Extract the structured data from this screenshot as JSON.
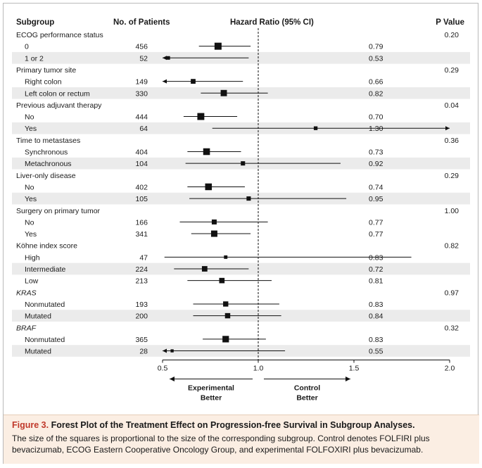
{
  "headers": {
    "subgroup": "Subgroup",
    "patients": "No. of Patients",
    "hr": "Hazard Ratio (95% CI)",
    "pvalue": "P Value"
  },
  "chart_data": {
    "type": "forest",
    "reference_line": 1.0,
    "xlim": [
      0.5,
      2.0
    ],
    "ticks": [
      {
        "value": 0.5,
        "label": "0.5"
      },
      {
        "value": 1.0,
        "label": "1.0"
      },
      {
        "value": 1.5,
        "label": "1.5"
      },
      {
        "value": 2.0,
        "label": "2.0"
      }
    ],
    "left_label": [
      "Experimental",
      "Better"
    ],
    "right_label": [
      "Control",
      "Better"
    ],
    "groups": [
      {
        "name": "ECOG performance status",
        "italic": false,
        "pvalue": "0.20",
        "rows": [
          {
            "label": "0",
            "n": "456",
            "hr_text": "0.79",
            "hr": 0.79,
            "lo": 0.69,
            "hi": 0.96
          },
          {
            "label": "1 or 2",
            "n": "52",
            "hr_text": "0.53",
            "hr": 0.53,
            "lo": 0.45,
            "hi": 0.95
          }
        ]
      },
      {
        "name": "Primary tumor site",
        "italic": false,
        "pvalue": "0.29",
        "rows": [
          {
            "label": "Right colon",
            "n": "149",
            "hr_text": "0.66",
            "hr": 0.66,
            "lo": 0.5,
            "hi": 0.92
          },
          {
            "label": "Left colon or rectum",
            "n": "330",
            "hr_text": "0.82",
            "hr": 0.82,
            "lo": 0.7,
            "hi": 1.05
          }
        ]
      },
      {
        "name": "Previous adjuvant therapy",
        "italic": false,
        "pvalue": "0.04",
        "rows": [
          {
            "label": "No",
            "n": "444",
            "hr_text": "0.70",
            "hr": 0.7,
            "lo": 0.61,
            "hi": 0.89
          },
          {
            "label": "Yes",
            "n": "64",
            "hr_text": "1.30",
            "hr": 1.3,
            "lo": 0.76,
            "hi": 2.0
          }
        ]
      },
      {
        "name": "Time to metastases",
        "italic": false,
        "pvalue": "0.36",
        "rows": [
          {
            "label": "Synchronous",
            "n": "404",
            "hr_text": "0.73",
            "hr": 0.73,
            "lo": 0.63,
            "hi": 0.91
          },
          {
            "label": "Metachronous",
            "n": "104",
            "hr_text": "0.92",
            "hr": 0.92,
            "lo": 0.62,
            "hi": 1.43
          }
        ]
      },
      {
        "name": "Liver-only disease",
        "italic": false,
        "pvalue": "0.29",
        "rows": [
          {
            "label": "No",
            "n": "402",
            "hr_text": "0.74",
            "hr": 0.74,
            "lo": 0.63,
            "hi": 0.93
          },
          {
            "label": "Yes",
            "n": "105",
            "hr_text": "0.95",
            "hr": 0.95,
            "lo": 0.64,
            "hi": 1.46
          }
        ]
      },
      {
        "name": "Surgery on primary tumor",
        "italic": false,
        "pvalue": "1.00",
        "rows": [
          {
            "label": "No",
            "n": "166",
            "hr_text": "0.77",
            "hr": 0.77,
            "lo": 0.59,
            "hi": 1.05
          }
        ]
      },
      {
        "name": "",
        "italic": false,
        "pvalue": "",
        "rows": [
          {
            "label": "Yes",
            "n": "341",
            "hr_text": "0.77",
            "hr": 0.77,
            "lo": 0.65,
            "hi": 0.96
          }
        ]
      },
      {
        "name": "Köhne index score",
        "italic": false,
        "pvalue": "0.82",
        "rows": [
          {
            "label": "High",
            "n": "47",
            "hr_text": "0.83",
            "hr": 0.83,
            "lo": 0.51,
            "hi": 1.8
          },
          {
            "label": "Intermediate",
            "n": "224",
            "hr_text": "0.72",
            "hr": 0.72,
            "lo": 0.56,
            "hi": 0.95
          },
          {
            "label": "Low",
            "n": "213",
            "hr_text": "0.81",
            "hr": 0.81,
            "lo": 0.63,
            "hi": 1.07
          }
        ]
      },
      {
        "name": "KRAS",
        "italic": true,
        "pvalue": "0.97",
        "rows": [
          {
            "label": "Nonmutated",
            "n": "193",
            "hr_text": "0.83",
            "hr": 0.83,
            "lo": 0.66,
            "hi": 1.11
          },
          {
            "label": "Mutated",
            "n": "200",
            "hr_text": "0.84",
            "hr": 0.84,
            "lo": 0.66,
            "hi": 1.12
          }
        ]
      },
      {
        "name": "BRAF",
        "italic": true,
        "pvalue": "0.32",
        "rows": [
          {
            "label": "Nonmutated",
            "n": "365",
            "hr_text": "0.83",
            "hr": 0.83,
            "lo": 0.71,
            "hi": 1.04
          },
          {
            "label": "Mutated",
            "n": "28",
            "hr_text": "0.55",
            "hr": 0.55,
            "lo": 0.5,
            "hi": 1.14
          }
        ]
      }
    ]
  },
  "caption": {
    "figure_label": "Figure 3.",
    "title": "Forest Plot of the Treatment Effect on Progression-free Survival in Subgroup Analyses.",
    "text": "The size of the squares is proportional to the size of the corresponding subgroup. Control denotes FOLFIRI plus bevacizumab, ECOG Eastern Cooperative Oncology Group, and experimental FOLFOXIRI plus bevacizumab."
  },
  "colors": {
    "caption_bg": "#fbeee3",
    "figure_label": "#c0392b",
    "zebra": "#ebebeb"
  }
}
